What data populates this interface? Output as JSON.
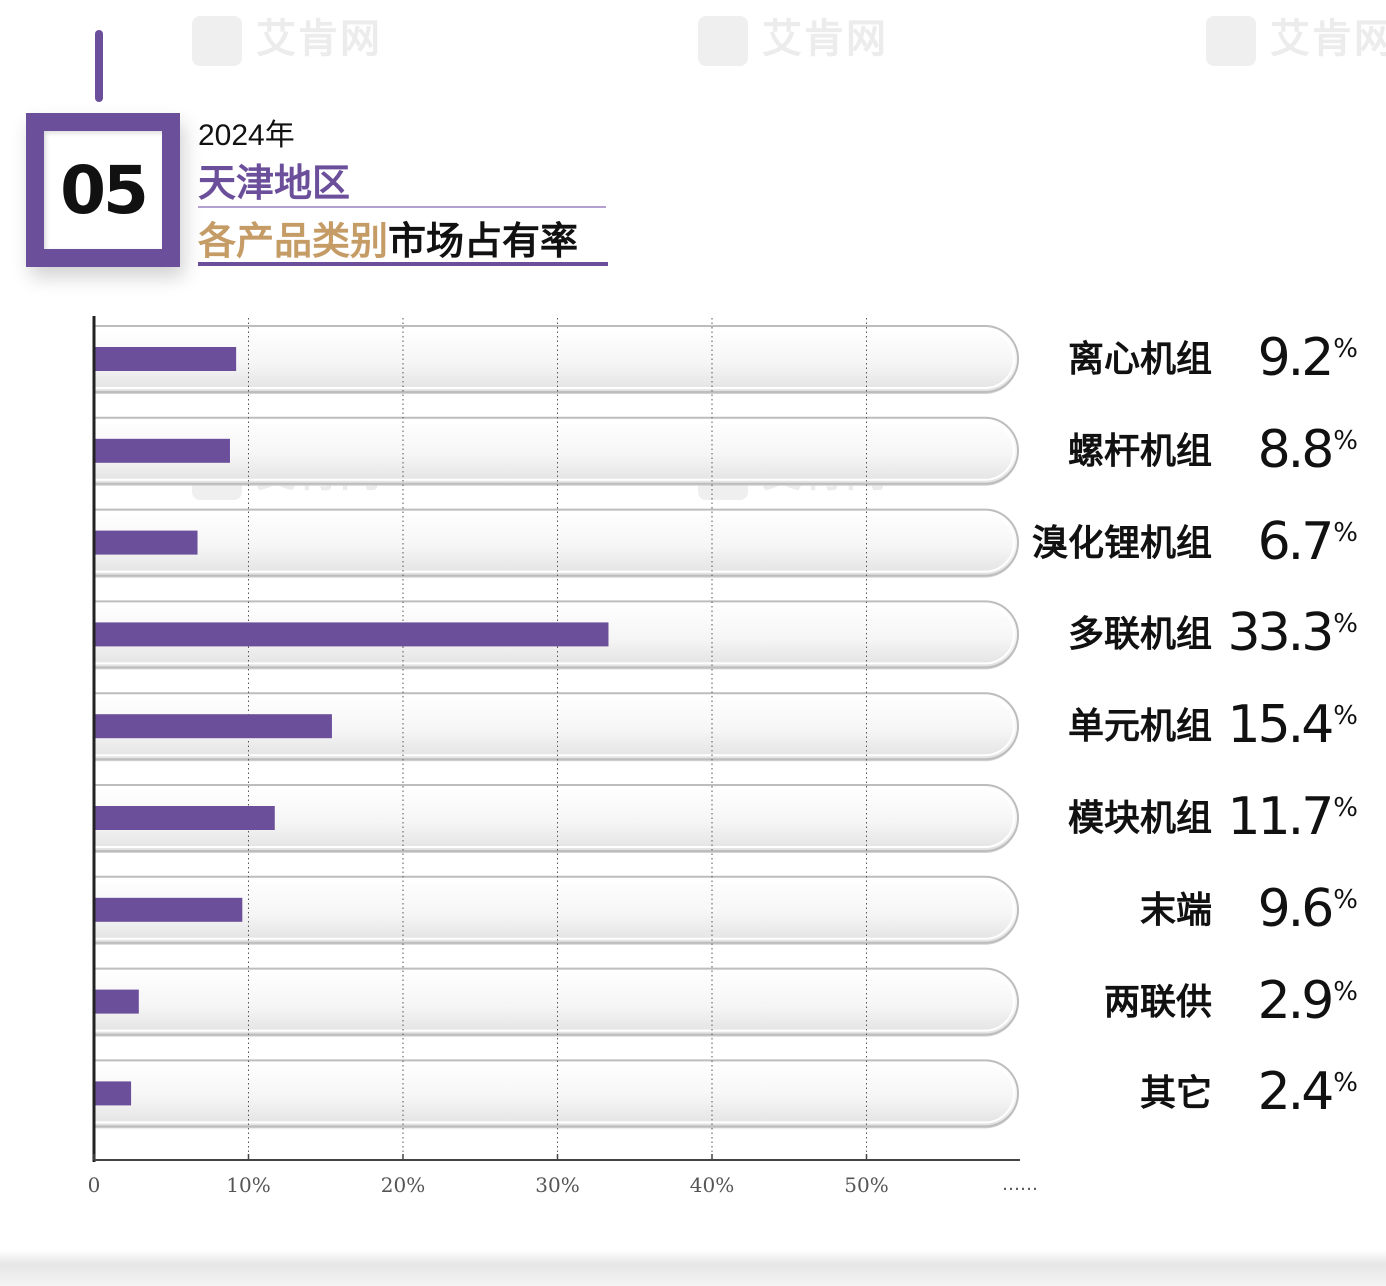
{
  "watermark_text": "艾肯网",
  "header": {
    "badge_number": "05",
    "year": "2024年",
    "region": "天津地区",
    "title_part1": "各产品类别",
    "title_part2": "市场占有率"
  },
  "colors": {
    "accent": "#6b4f9b",
    "gold": "#c59b66",
    "text": "#111111"
  },
  "chart_data": {
    "type": "bar",
    "orientation": "horizontal",
    "categories": [
      "离心机组",
      "螺杆机组",
      "溴化锂机组",
      "多联机组",
      "单元机组",
      "模块机组",
      "末端",
      "两联供",
      "其它"
    ],
    "values": [
      9.2,
      8.8,
      6.7,
      33.3,
      15.4,
      11.7,
      9.6,
      2.9,
      2.4
    ],
    "value_labels": [
      "9.2",
      "8.8",
      "6.7",
      "33.3",
      "15.4",
      "11.7",
      "9.6",
      "2.9",
      "2.4"
    ],
    "value_unit": "%",
    "x_ticks": [
      "0",
      "10%",
      "20%",
      "30%",
      "40%",
      "50%"
    ],
    "x_tick_values": [
      0,
      10,
      20,
      30,
      40,
      50
    ],
    "x_axis_continuation": "……",
    "xlim": [
      0,
      60
    ],
    "grid": true
  }
}
